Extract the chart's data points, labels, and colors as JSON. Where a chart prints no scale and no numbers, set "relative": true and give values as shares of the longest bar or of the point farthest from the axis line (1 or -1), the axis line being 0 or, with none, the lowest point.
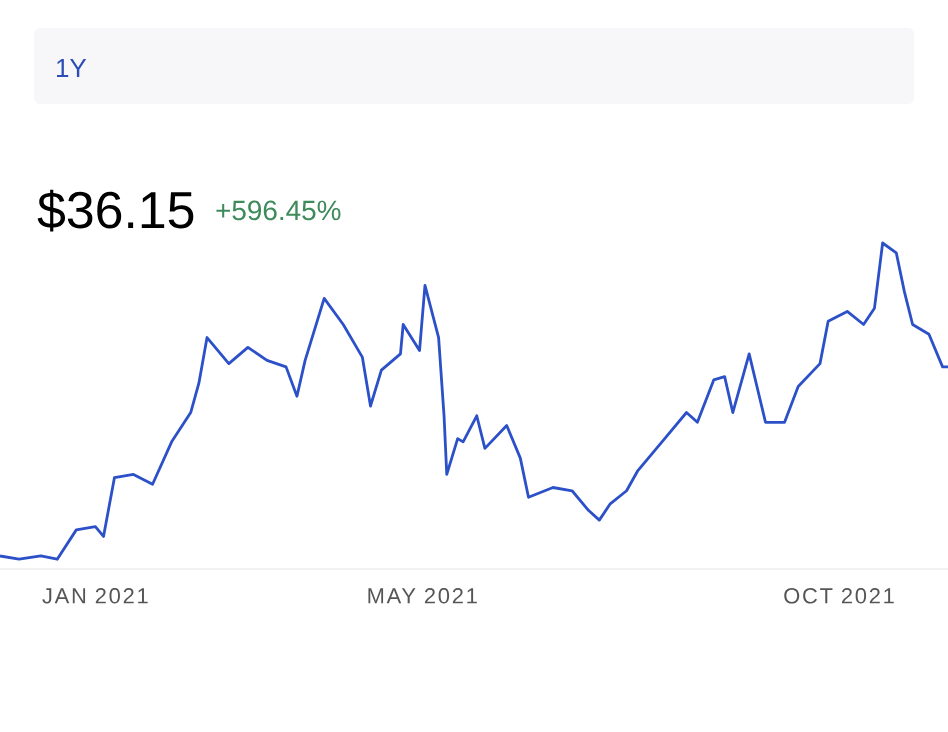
{
  "chart_data": {
    "type": "line",
    "title": "$36.15",
    "subtitle": "+596.45%",
    "annotations": [
      "1Y"
    ],
    "relative": true,
    "x": [
      "2020-12-11",
      "2020-12-18",
      "2020-12-26",
      "2021-01-01",
      "2021-01-08",
      "2021-01-15",
      "2021-01-18",
      "2021-01-22",
      "2021-01-29",
      "2021-02-05",
      "2021-02-12",
      "2021-02-19",
      "2021-02-22",
      "2021-02-25",
      "2021-03-05",
      "2021-03-12",
      "2021-03-19",
      "2021-03-26",
      "2021-03-30",
      "2021-04-02",
      "2021-04-09",
      "2021-04-16",
      "2021-04-23",
      "2021-04-26",
      "2021-04-30",
      "2021-05-07",
      "2021-05-08",
      "2021-05-14",
      "2021-05-16",
      "2021-05-21",
      "2021-05-23",
      "2021-05-24",
      "2021-05-28",
      "2021-05-30",
      "2021-06-04",
      "2021-06-07",
      "2021-06-15",
      "2021-06-20",
      "2021-06-23",
      "2021-07-02",
      "2021-07-09",
      "2021-07-15",
      "2021-07-19",
      "2021-07-23",
      "2021-07-29",
      "2021-08-02",
      "2021-08-12",
      "2021-08-20",
      "2021-08-24",
      "2021-08-30",
      "2021-09-03",
      "2021-09-06",
      "2021-09-12",
      "2021-09-18",
      "2021-09-25",
      "2021-09-30",
      "2021-10-08",
      "2021-10-11",
      "2021-10-18",
      "2021-10-24",
      "2021-10-28",
      "2021-10-31",
      "2021-11-05",
      "2021-11-08",
      "2021-11-11",
      "2021-11-17",
      "2021-11-22",
      "2021-11-24"
    ],
    "series": [
      {
        "color": "#2b50c8",
        "values": [
          0.04,
          0.03,
          0.04,
          0.03,
          0.12,
          0.13,
          0.1,
          0.28,
          0.29,
          0.26,
          0.39,
          0.48,
          0.57,
          0.71,
          0.63,
          0.68,
          0.64,
          0.62,
          0.53,
          0.64,
          0.83,
          0.75,
          0.65,
          0.5,
          0.61,
          0.66,
          0.75,
          0.67,
          0.87,
          0.71,
          0.47,
          0.29,
          0.4,
          0.39,
          0.47,
          0.37,
          0.44,
          0.34,
          0.22,
          0.25,
          0.24,
          0.18,
          0.15,
          0.2,
          0.24,
          0.3,
          0.4,
          0.48,
          0.45,
          0.58,
          0.59,
          0.48,
          0.66,
          0.45,
          0.45,
          0.56,
          0.63,
          0.76,
          0.79,
          0.75,
          0.8,
          1,
          0.97,
          0.85,
          0.75,
          0.72,
          0.62,
          0.62
        ]
      }
    ],
    "xlim": [
      "2020-12-11",
      "2021-11-24"
    ],
    "xticks": [
      {
        "value": "2021-01-15",
        "label": "JAN 2021"
      },
      {
        "value": "2021-05-15",
        "label": "MAY 2021"
      },
      {
        "value": "2021-10-15",
        "label": "OCT 2021"
      }
    ],
    "line_style": "solid"
  }
}
